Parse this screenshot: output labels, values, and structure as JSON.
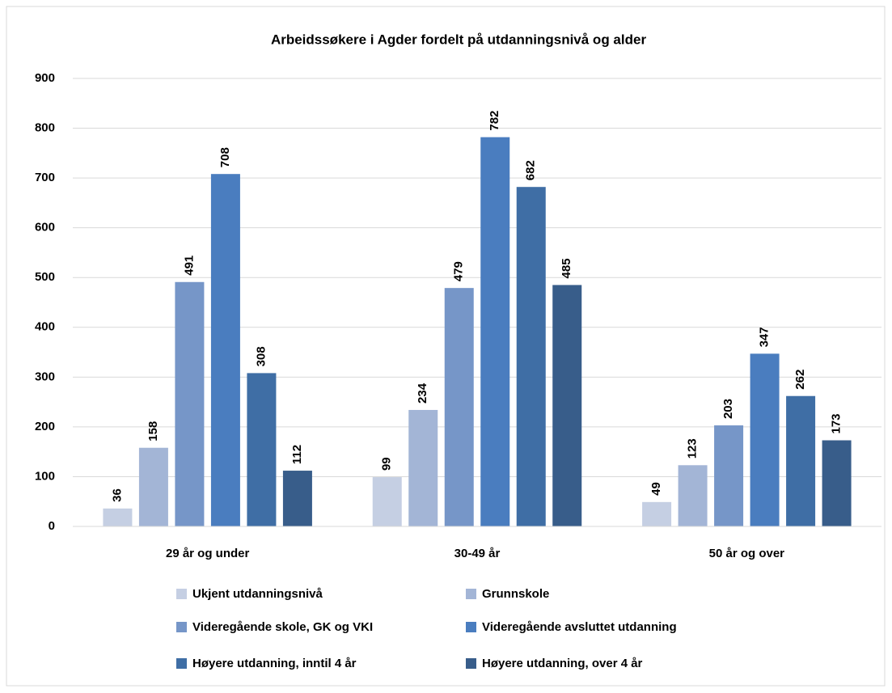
{
  "chart_data": {
    "type": "bar",
    "title": "Arbeidssøkere i Agder fordelt på utdanningsnivå og alder",
    "categories": [
      "29 år og under",
      "30-49 år",
      "50 år og over"
    ],
    "series": [
      {
        "name": "Ukjent utdanningsnivå",
        "color": "#c5cfe3",
        "values": [
          36,
          99,
          49
        ]
      },
      {
        "name": "Grunnskole",
        "color": "#a3b5d6",
        "values": [
          158,
          234,
          123
        ]
      },
      {
        "name": "Videregående skole, GK og VKI",
        "color": "#7696c8",
        "values": [
          491,
          479,
          203
        ]
      },
      {
        "name": "Videregående avsluttet utdanning",
        "color": "#4a7dbf",
        "values": [
          708,
          782,
          347
        ]
      },
      {
        "name": "Høyere utdanning, inntil 4 år",
        "color": "#3f6ea5",
        "values": [
          308,
          682,
          262
        ]
      },
      {
        "name": "Høyere utdanning, over 4 år",
        "color": "#385d8a",
        "values": [
          112,
          485,
          173
        ]
      }
    ],
    "ylim": [
      0,
      900
    ],
    "yticks": [
      0,
      100,
      200,
      300,
      400,
      500,
      600,
      700,
      800,
      900
    ],
    "grid": true,
    "legend": "bottom"
  }
}
